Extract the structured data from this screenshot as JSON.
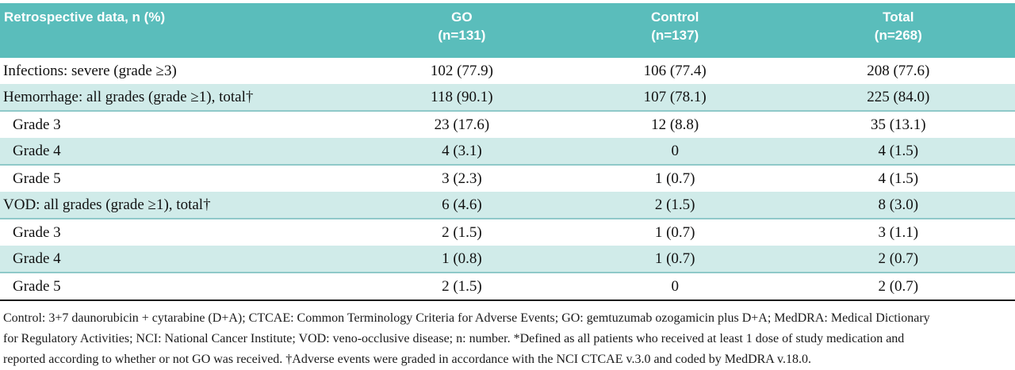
{
  "header": {
    "row_label": "Retrospective data, n (%)",
    "columns": [
      {
        "name": "GO",
        "n": "(n=131)"
      },
      {
        "name": "Control",
        "n": "(n=137)"
      },
      {
        "name": "Total",
        "n": "(n=268)"
      }
    ]
  },
  "rows": [
    {
      "label": "Infections: severe (grade ≥3)",
      "go": "102 (77.9)",
      "control": "106 (77.4)",
      "total": "208 (77.6)"
    },
    {
      "label": "Hemorrhage: all grades (grade ≥1), total†",
      "go": "118 (90.1)",
      "control": "107 (78.1)",
      "total": "225 (84.0)"
    },
    {
      "label": "Grade 3",
      "go": "23 (17.6)",
      "control": "12 (8.8)",
      "total": "35 (13.1)"
    },
    {
      "label": "Grade 4",
      "go": "4 (3.1)",
      "control": "0",
      "total": "4 (1.5)"
    },
    {
      "label": "Grade 5",
      "go": "3 (2.3)",
      "control": "1 (0.7)",
      "total": "4 (1.5)"
    },
    {
      "label": "VOD: all grades (grade ≥1), total†",
      "go": "6 (4.6)",
      "control": "2 (1.5)",
      "total": "8 (3.0)"
    },
    {
      "label": "Grade 3",
      "go": "2 (1.5)",
      "control": "1 (0.7)",
      "total": "3 (1.1)"
    },
    {
      "label": "Grade 4",
      "go": "1 (0.8)",
      "control": "1 (0.7)",
      "total": "2 (0.7)"
    },
    {
      "label": "Grade 5",
      "go": "2 (1.5)",
      "control": "0",
      "total": "2 (0.7)"
    }
  ],
  "footnote": {
    "lines": [
      "Control: 3+7 daunorubicin + cytarabine (D+A); CTCAE: Common Terminology Criteria for Adverse Events; GO: gemtuzumab ozogamicin plus D+A; MedDRA: Medical Dictionary",
      "for Regulatory Activities; NCI: National Cancer Institute; VOD: veno-occlusive disease; n: number. *Defined as all patients who received at least 1 dose of study medication and",
      "reported according to whether or not GO was received. †Adverse events were graded in accordance with the NCI CTCAE v.3.0 and coded by MedDRA v.18.0."
    ]
  },
  "colors": {
    "header_bg": "#5abdbb",
    "header_text": "#ffffff",
    "stripe_bg": "#d0ebe9",
    "stripe_border": "#8fc9c9",
    "table_bottom_border": "#1c1c1c",
    "body_text": "#111111"
  }
}
